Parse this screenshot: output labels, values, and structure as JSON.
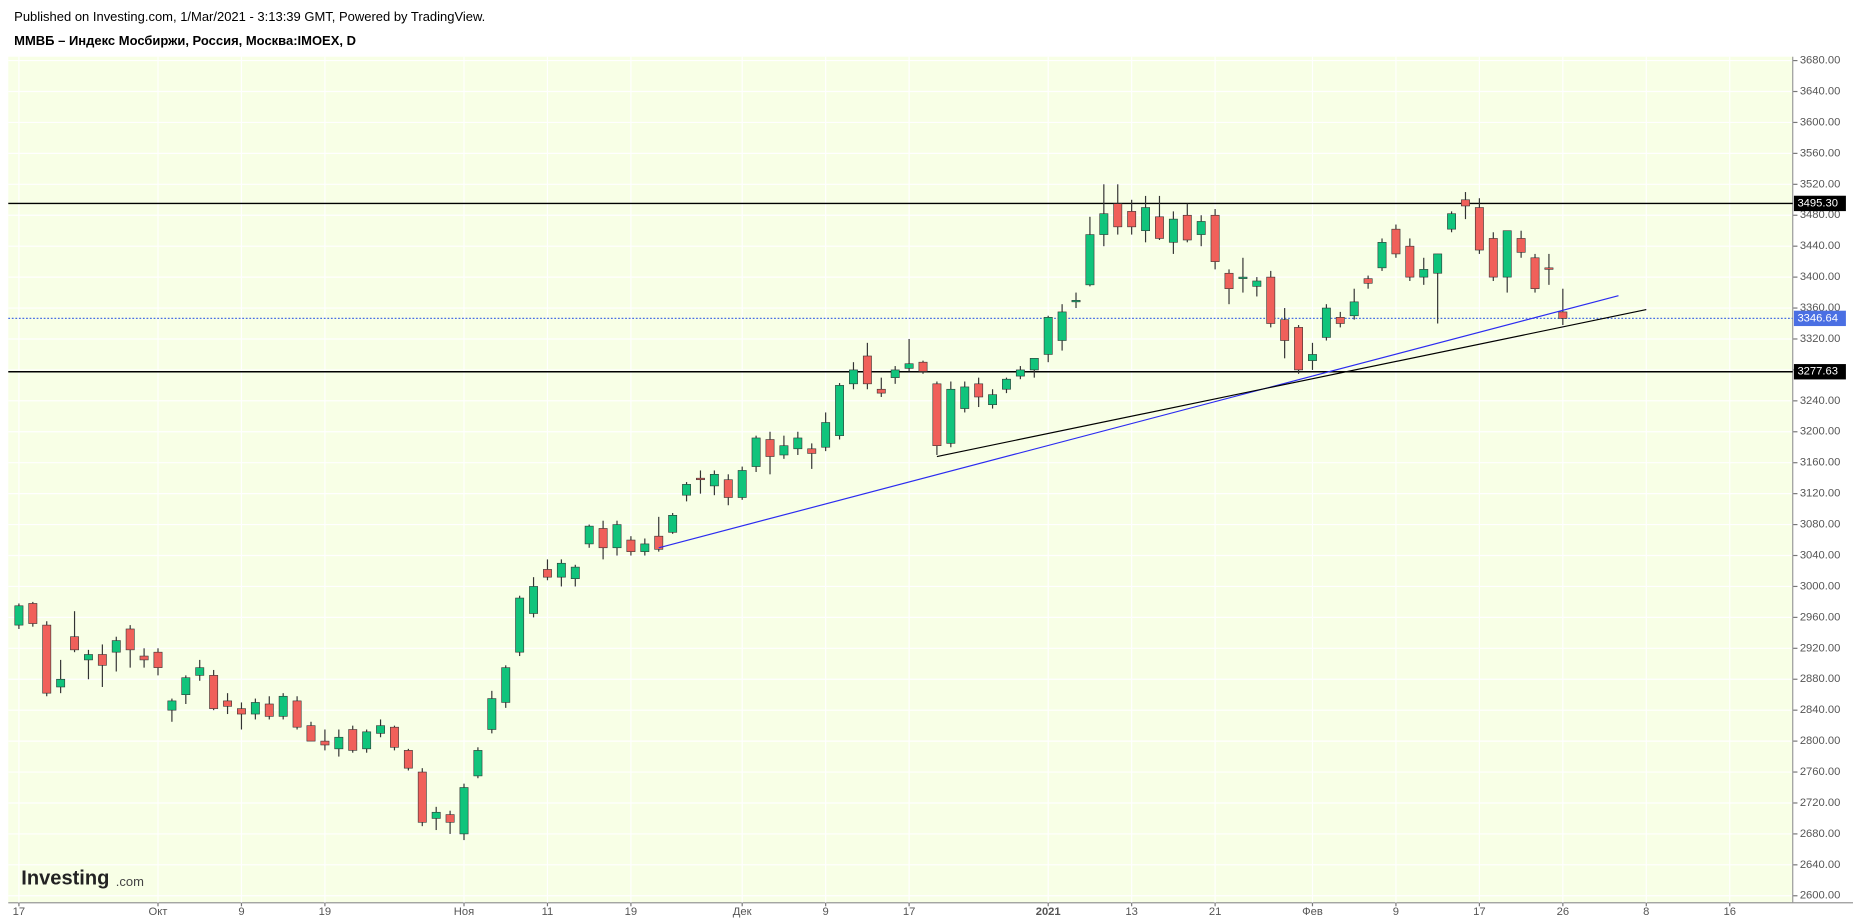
{
  "header": {
    "published": "Published on Investing.com, 1/Mar/2021 - 3:13:39 GMT, Powered by TradingView.",
    "symbol": "ММВБ – Индекс Мосбиржи, Россия, Москва:IMOEX, D"
  },
  "logo": {
    "brand": "Investing",
    "suffix": ".com"
  },
  "chart_data": {
    "type": "candlestick",
    "up_color": "#10c47c",
    "down_color": "#f0605a",
    "background": "#f8ffe6",
    "grid": true,
    "categories": [
      "17",
      null,
      null,
      null,
      null,
      null,
      null,
      null,
      null,
      null,
      "Окт",
      null,
      null,
      null,
      null,
      null,
      "9",
      null,
      null,
      null,
      null,
      null,
      "19",
      null,
      null,
      null,
      null,
      null,
      null,
      null,
      null,
      null,
      "Ноя",
      null,
      null,
      null,
      null,
      null,
      "11",
      null,
      null,
      null,
      null,
      null,
      "19",
      null,
      null,
      null,
      null,
      null,
      null,
      null,
      "Дек",
      null,
      null,
      null,
      null,
      null,
      "9",
      null,
      null,
      null,
      null,
      null,
      "17",
      null,
      null,
      null,
      null,
      null,
      null,
      null,
      null,
      null,
      "2021",
      null,
      null,
      null,
      null,
      null,
      "13",
      null,
      null,
      null,
      null,
      null,
      "21",
      null,
      null,
      null,
      null,
      null,
      null,
      "Фев",
      null,
      null,
      null,
      null,
      null,
      "9",
      null,
      null,
      null,
      null,
      null,
      "17",
      null,
      null,
      null,
      null,
      null,
      "26",
      null,
      null,
      null,
      null,
      null,
      "8",
      null,
      null,
      null,
      null,
      null,
      "16"
    ],
    "open": [
      2950,
      2978,
      2950,
      2870,
      2935,
      2905,
      2912,
      2915,
      2945,
      2910,
      2915,
      2840,
      2860,
      2885,
      2885,
      2852,
      2842,
      2835,
      2848,
      2832,
      2852,
      2820,
      2800,
      2790,
      2815,
      2790,
      2810,
      2818,
      2788,
      2760,
      2700,
      2705,
      2680,
      2755,
      2815,
      2850,
      2915,
      2965,
      3022,
      3012,
      3010,
      3055,
      3075,
      3050,
      3060,
      3045,
      3065,
      3070,
      3118,
      3140,
      3130,
      3138,
      3115,
      3155,
      3190,
      3170,
      3178,
      3178,
      3180,
      3195,
      3262,
      3298,
      3255,
      3270,
      3282,
      3290,
      3262,
      3185,
      3230,
      3262,
      3235,
      3255,
      3272,
      3280,
      3300,
      3318,
      3368,
      3390,
      3455,
      3495,
      3485,
      3460,
      3478,
      3445,
      3480,
      3455,
      3480,
      3405,
      3398,
      3388,
      3400,
      3345,
      3335,
      3292,
      3322,
      3348,
      3350,
      3398,
      3412,
      3462,
      3440,
      3400,
      3405,
      3462,
      3500,
      3490,
      3450,
      3400,
      3450,
      3425,
      3412,
      3355,
      null,
      null,
      null,
      null,
      null,
      null,
      null,
      null,
      null,
      null,
      null,
      null
    ],
    "high": [
      2978,
      2980,
      2955,
      2905,
      2968,
      2918,
      2925,
      2935,
      2950,
      2920,
      2920,
      2855,
      2885,
      2905,
      2892,
      2862,
      2850,
      2855,
      2858,
      2862,
      2858,
      2825,
      2815,
      2815,
      2820,
      2815,
      2828,
      2820,
      2790,
      2765,
      2715,
      2710,
      2745,
      2792,
      2865,
      2898,
      2988,
      3012,
      3035,
      3035,
      3028,
      3080,
      3085,
      3085,
      3065,
      3062,
      3090,
      3095,
      3135,
      3150,
      3150,
      3145,
      3155,
      3195,
      3200,
      3195,
      3200,
      3185,
      3225,
      3263,
      3290,
      3315,
      3270,
      3285,
      3320,
      3292,
      3265,
      3265,
      3265,
      3270,
      3255,
      3270,
      3285,
      3295,
      3350,
      3365,
      3380,
      3478,
      3520,
      3520,
      3500,
      3505,
      3505,
      3485,
      3495,
      3480,
      3488,
      3410,
      3425,
      3400,
      3408,
      3360,
      3338,
      3315,
      3365,
      3355,
      3385,
      3402,
      3450,
      3468,
      3450,
      3425,
      3430,
      3485,
      3510,
      3502,
      3458,
      3460,
      3460,
      3430,
      3430,
      3385,
      null,
      null,
      null,
      null,
      null,
      null,
      null,
      null,
      null,
      null,
      null,
      null
    ],
    "low": [
      2945,
      2948,
      2858,
      2862,
      2915,
      2880,
      2870,
      2890,
      2895,
      2895,
      2885,
      2825,
      2848,
      2878,
      2840,
      2835,
      2815,
      2828,
      2828,
      2828,
      2815,
      2800,
      2788,
      2780,
      2785,
      2785,
      2805,
      2788,
      2762,
      2690,
      2685,
      2680,
      2672,
      2752,
      2810,
      2843,
      2910,
      2960,
      3008,
      3000,
      3000,
      3050,
      3035,
      3040,
      3040,
      3040,
      3045,
      3068,
      3110,
      3120,
      3118,
      3105,
      3112,
      3148,
      3145,
      3165,
      3170,
      3152,
      3175,
      3190,
      3255,
      3255,
      3245,
      3262,
      3278,
      3275,
      3170,
      3180,
      3225,
      3232,
      3230,
      3250,
      3268,
      3270,
      3290,
      3305,
      3360,
      3388,
      3440,
      3455,
      3455,
      3445,
      3448,
      3430,
      3445,
      3440,
      3410,
      3365,
      3380,
      3375,
      3335,
      3295,
      3275,
      3280,
      3318,
      3335,
      3345,
      3385,
      3408,
      3425,
      3395,
      3390,
      3340,
      3458,
      3475,
      3430,
      3395,
      3380,
      3425,
      3380,
      3390,
      3338,
      null,
      null,
      null,
      null,
      null,
      null,
      null,
      null,
      null,
      null,
      null,
      null
    ],
    "close": [
      2975,
      2952,
      2862,
      2880,
      2918,
      2912,
      2898,
      2930,
      2918,
      2905,
      2895,
      2852,
      2882,
      2895,
      2842,
      2845,
      2835,
      2850,
      2832,
      2858,
      2818,
      2800,
      2795,
      2805,
      2788,
      2812,
      2820,
      2792,
      2765,
      2695,
      2708,
      2695,
      2740,
      2788,
      2855,
      2895,
      2985,
      3000,
      3012,
      3030,
      3025,
      3078,
      3050,
      3080,
      3045,
      3055,
      3048,
      3092,
      3132,
      3138,
      3145,
      3115,
      3150,
      3192,
      3168,
      3182,
      3192,
      3172,
      3212,
      3260,
      3280,
      3262,
      3250,
      3280,
      3288,
      3278,
      3182,
      3255,
      3258,
      3245,
      3248,
      3268,
      3280,
      3295,
      3348,
      3355,
      3370,
      3455,
      3482,
      3465,
      3465,
      3490,
      3450,
      3475,
      3448,
      3472,
      3420,
      3385,
      3400,
      3395,
      3340,
      3318,
      3280,
      3300,
      3360,
      3340,
      3368,
      3392,
      3445,
      3430,
      3400,
      3410,
      3430,
      3482,
      3492,
      3435,
      3400,
      3460,
      3432,
      3385,
      3410,
      3346.64,
      null,
      null,
      null,
      null,
      null,
      null,
      null,
      null,
      null,
      null,
      null,
      null
    ],
    "ylim": [
      2591,
      3685
    ],
    "yticks": [
      {
        "value": 2600,
        "label": "2600.00"
      },
      {
        "value": 2640,
        "label": "2640.00"
      },
      {
        "value": 2680,
        "label": "2680.00"
      },
      {
        "value": 2720,
        "label": "2720.00"
      },
      {
        "value": 2760,
        "label": "2760.00"
      },
      {
        "value": 2800,
        "label": "2800.00"
      },
      {
        "value": 2840,
        "label": "2840.00"
      },
      {
        "value": 2880,
        "label": "2880.00"
      },
      {
        "value": 2920,
        "label": "2920.00"
      },
      {
        "value": 2960,
        "label": "2960.00"
      },
      {
        "value": 3000,
        "label": "3000.00"
      },
      {
        "value": 3040,
        "label": "3040.00"
      },
      {
        "value": 3080,
        "label": "3080.00"
      },
      {
        "value": 3120,
        "label": "3120.00"
      },
      {
        "value": 3160,
        "label": "3160.00"
      },
      {
        "value": 3200,
        "label": "3200.00"
      },
      {
        "value": 3240,
        "label": "3240.00"
      },
      {
        "value": 3280,
        "label": "3280.00"
      },
      {
        "value": 3320,
        "label": "3320.00"
      },
      {
        "value": 3360,
        "label": "3360.00"
      },
      {
        "value": 3400,
        "label": "3400.00"
      },
      {
        "value": 3440,
        "label": "3440.00"
      },
      {
        "value": 3480,
        "label": "3480.00"
      },
      {
        "value": 3520,
        "label": "3520.00"
      },
      {
        "value": 3560,
        "label": "3560.00"
      },
      {
        "value": 3600,
        "label": "3600.00"
      },
      {
        "value": 3640,
        "label": "3640.00"
      },
      {
        "value": 3680,
        "label": "3680.00"
      }
    ],
    "levels": [
      {
        "value": 3495.3,
        "label": "3495.30",
        "color": "#000000"
      },
      {
        "value": 3277.63,
        "label": "3277.63",
        "color": "#000000"
      }
    ],
    "last_price": {
      "value": 3346.64,
      "label": "3346.64",
      "color": "#4a6fe3"
    },
    "trendlines": [
      {
        "color": "#2b2bf0",
        "x": [
          46,
          115
        ],
        "y": [
          3050,
          3376
        ]
      },
      {
        "color": "#000000",
        "x": [
          66,
          117
        ],
        "y": [
          3168,
          3358
        ]
      }
    ]
  }
}
